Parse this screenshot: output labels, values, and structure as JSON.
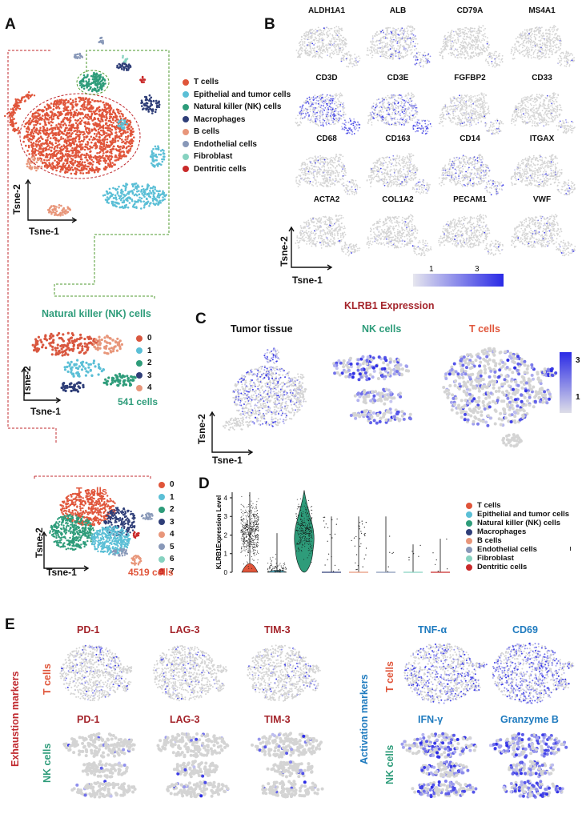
{
  "panels": {
    "a": "A",
    "b": "B",
    "c": "C",
    "d": "D",
    "e": "E"
  },
  "colors": {
    "t_cells": "#e0553a",
    "epithelial": "#5bbfd6",
    "nk": "#2e9c7a",
    "macrophages": "#2f3e78",
    "b_cells": "#e8967a",
    "endothelial": "#8898b8",
    "fibroblast": "#86d2c0",
    "dendritic": "#c92a2a",
    "expr_low": "#d9d9d9",
    "expr_high": "#2a2ae6",
    "dashed_red": "#c0282d",
    "dashed_green": "#4d9a2e"
  },
  "panel_a": {
    "legend": [
      {
        "label": "T cells",
        "color": "#e0553a"
      },
      {
        "label": "Epithelial and tumor cells",
        "color": "#5bbfd6"
      },
      {
        "label": "Natural killer (NK) cells",
        "color": "#2e9c7a"
      },
      {
        "label": "Macrophages",
        "color": "#2f3e78"
      },
      {
        "label": "B cells",
        "color": "#e8967a"
      },
      {
        "label": "Endothelial cells",
        "color": "#8898b8"
      },
      {
        "label": "Fibroblast",
        "color": "#86d2c0"
      },
      {
        "label": "Dentritic cells",
        "color": "#c92a2a"
      }
    ],
    "x_axis": "Tsne-1",
    "y_axis": "Tsne-2",
    "nk_title": "Natural killer (NK) cells",
    "nk_count": "541 cells",
    "nk_clusters": [
      "0",
      "1",
      "2",
      "3",
      "4"
    ],
    "nk_cluster_colors": [
      "#d9573f",
      "#5bbfd6",
      "#2e9c7a",
      "#2f3e78",
      "#e8967a"
    ],
    "t_title": "T cells",
    "t_count": "4519 cells",
    "t_clusters": [
      "0",
      "1",
      "2",
      "3",
      "4",
      "5",
      "6",
      "7"
    ],
    "t_cluster_colors": [
      "#e0553a",
      "#5bbfd6",
      "#2e9c7a",
      "#2f3e78",
      "#e8967a",
      "#8898b8",
      "#86d2c0",
      "#c92a2a"
    ]
  },
  "panel_b": {
    "genes": [
      "ALDH1A1",
      "ALB",
      "CD79A",
      "MS4A1",
      "CD3D",
      "CD3E",
      "FGFBP2",
      "CD33",
      "CD68",
      "CD163",
      "CD14",
      "ITGAX",
      "ACTA2",
      "COL1A2",
      "PECAM1",
      "VWF"
    ],
    "x_axis": "Tsne-1",
    "y_axis": "Tsne-2",
    "scale_low": "1",
    "scale_high": "3"
  },
  "panel_c": {
    "title": "KLRB1 Expression",
    "sub_titles": [
      "Tumor tissue",
      "NK cells",
      "T cells"
    ],
    "x_axis": "Tsne-1",
    "y_axis": "Tsne-2",
    "scale_high": "3",
    "scale_low": "1"
  },
  "panel_d": {
    "ylabel": "KLRB1Expression Level",
    "legend": [
      {
        "label": "T cells",
        "color": "#e0553a"
      },
      {
        "label": "Epithelial and tumor cells",
        "color": "#5bbfd6"
      },
      {
        "label": "Natural killer (NK) cells",
        "color": "#2e9c7a"
      },
      {
        "label": "Macrophages",
        "color": "#2f3e78"
      },
      {
        "label": "B cells",
        "color": "#e8967a"
      },
      {
        "label": "Endothelial cells",
        "color": "#8898b8"
      },
      {
        "label": "Fibroblast",
        "color": "#86d2c0"
      },
      {
        "label": "Dentritic cells",
        "color": "#c92a2a"
      }
    ]
  },
  "chart_data": {
    "type": "violin",
    "title": "",
    "ylabel": "KLRB1Expression Level",
    "ylim": [
      0,
      4.3
    ],
    "yticks": [
      "0",
      "1",
      "2",
      "3",
      "4"
    ],
    "categories": [
      "T cells",
      "Epithelial and tumor cells",
      "Natural killer (NK) cells",
      "Macrophages",
      "B cells",
      "Endothelial cells",
      "Fibroblast",
      "Dentritic cells"
    ],
    "max_values": [
      4.3,
      2.1,
      4.4,
      3.0,
      3.0,
      3.0,
      1.5,
      1.8
    ],
    "median_values": [
      2.2,
      0.1,
      2.3,
      0,
      0,
      0,
      0,
      0
    ]
  },
  "panel_e": {
    "exhaustion_label": "Exhaustion markers",
    "activation_label": "Activation markers",
    "t_row_label": "T cells",
    "nk_row_label": "NK cells",
    "exhaustion_t": [
      "PD-1",
      "LAG-3",
      "TIM-3"
    ],
    "exhaustion_nk": [
      "PD-1",
      "LAG-3",
      "TIM-3"
    ],
    "activation_t": [
      "TNF-α",
      "CD69"
    ],
    "activation_nk": [
      "IFN-γ",
      "Granzyme B"
    ]
  }
}
